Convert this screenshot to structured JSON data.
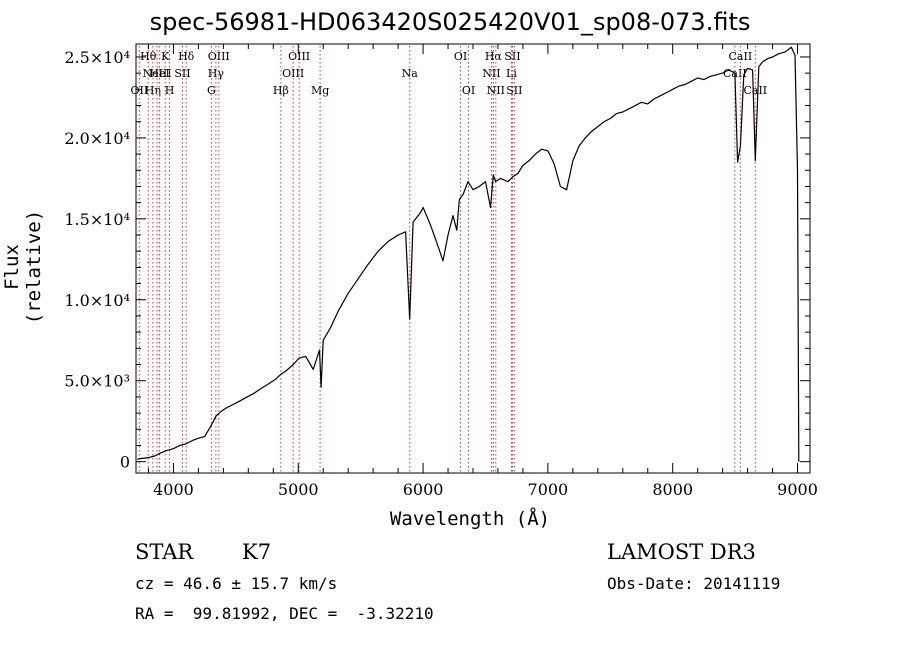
{
  "chart_data": {
    "type": "line",
    "title": "spec-56981-HD063420S025420V01_sp08-073.fits",
    "xlabel": "Wavelength (Å)",
    "ylabel": "Flux (relative)",
    "xlim": [
      3700,
      9100
    ],
    "ylim": [
      -700,
      25800
    ],
    "xticks": [
      {
        "value": 4000,
        "label": "4000"
      },
      {
        "value": 5000,
        "label": "5000"
      },
      {
        "value": 6000,
        "label": "6000"
      },
      {
        "value": 7000,
        "label": "7000"
      },
      {
        "value": 8000,
        "label": "8000"
      },
      {
        "value": 9000,
        "label": "9000"
      }
    ],
    "yticks": [
      {
        "value": 0,
        "label": "0"
      },
      {
        "value": 5000,
        "label": "5.0×10³"
      },
      {
        "value": 10000,
        "label": "1.0×10⁴"
      },
      {
        "value": 15000,
        "label": "1.5×10⁴"
      },
      {
        "value": 20000,
        "label": "2.0×10⁴"
      },
      {
        "value": 25000,
        "label": "2.5×10⁴"
      }
    ],
    "grid": false,
    "series": [
      {
        "color": "#000000",
        "x": [
          3710,
          3750,
          3800,
          3850,
          3900,
          3950,
          4000,
          4050,
          4100,
          4150,
          4200,
          4250,
          4300,
          4340,
          4380,
          4420,
          4470,
          4520,
          4580,
          4640,
          4700,
          4760,
          4820,
          4861,
          4900,
          4960,
          5007,
          5060,
          5120,
          5170,
          5183,
          5200,
          5260,
          5320,
          5400,
          5480,
          5560,
          5640,
          5720,
          5800,
          5860,
          5893,
          5920,
          5980,
          6000,
          6060,
          6120,
          6160,
          6200,
          6240,
          6270,
          6290,
          6320,
          6360,
          6400,
          6450,
          6500,
          6540,
          6563,
          6580,
          6620,
          6680,
          6720,
          6760,
          6800,
          6850,
          6900,
          6950,
          7000,
          7050,
          7100,
          7150,
          7200,
          7250,
          7300,
          7350,
          7400,
          7450,
          7500,
          7550,
          7600,
          7650,
          7700,
          7750,
          7800,
          7850,
          7900,
          7950,
          8000,
          8050,
          8100,
          8150,
          8200,
          8250,
          8300,
          8350,
          8400,
          8450,
          8498,
          8520,
          8542,
          8570,
          8600,
          8640,
          8662,
          8690,
          8720,
          8760,
          8800,
          8850,
          8900,
          8950,
          8980,
          9000,
          9010
        ],
        "y": [
          150,
          200,
          250,
          350,
          550,
          700,
          800,
          1000,
          1100,
          1300,
          1450,
          1550,
          2200,
          2800,
          3100,
          3300,
          3500,
          3700,
          3950,
          4200,
          4500,
          4800,
          5100,
          5400,
          5600,
          6000,
          6400,
          6500,
          5700,
          6900,
          4600,
          7500,
          8300,
          9300,
          10400,
          11300,
          12200,
          13000,
          13600,
          14000,
          14200,
          8800,
          14800,
          15400,
          15700,
          14600,
          13300,
          12400,
          14000,
          15200,
          14300,
          16200,
          16500,
          17300,
          16800,
          17000,
          17300,
          15700,
          17700,
          17300,
          17500,
          17300,
          17600,
          17800,
          18300,
          18600,
          19000,
          19300,
          19200,
          18400,
          17000,
          16800,
          18600,
          19500,
          20000,
          20400,
          20700,
          21000,
          21200,
          21500,
          21600,
          21800,
          22000,
          22200,
          22100,
          22400,
          22600,
          22800,
          23000,
          23200,
          23300,
          23500,
          23700,
          23600,
          23800,
          23900,
          24000,
          24200,
          24000,
          18500,
          19500,
          23900,
          24300,
          24200,
          18600,
          24400,
          24700,
          24900,
          25000,
          25200,
          25300,
          25600,
          25100,
          18000,
          0
        ]
      }
    ],
    "spectral_lines": [
      {
        "wavelength": 3727,
        "label": "OII",
        "row": 2
      },
      {
        "wavelength": 3798,
        "label": "Hθ",
        "row": 0
      },
      {
        "wavelength": 3835,
        "label": "Hη",
        "row": 2
      },
      {
        "wavelength": 3869,
        "label": "NeIII",
        "row": 1
      },
      {
        "wavelength": 3889,
        "label": "HeI",
        "row": 1
      },
      {
        "wavelength": 3934,
        "label": "K",
        "row": 0
      },
      {
        "wavelength": 3969,
        "label": "H",
        "row": 2
      },
      {
        "wavelength": 4072,
        "label": "SII",
        "row": 1
      },
      {
        "wavelength": 4102,
        "label": "Hδ",
        "row": 0
      },
      {
        "wavelength": 4304,
        "label": "G",
        "row": 2
      },
      {
        "wavelength": 4340,
        "label": "Hγ",
        "row": 1
      },
      {
        "wavelength": 4363,
        "label": "OIII",
        "row": 0
      },
      {
        "wavelength": 4861,
        "label": "Hβ",
        "row": 2
      },
      {
        "wavelength": 4959,
        "label": "OIII",
        "row": 1
      },
      {
        "wavelength": 5007,
        "label": "OIII",
        "row": 0
      },
      {
        "wavelength": 5175,
        "label": "Mg",
        "row": 2
      },
      {
        "wavelength": 5893,
        "label": "Na",
        "row": 1
      },
      {
        "wavelength": 6300,
        "label": "OI",
        "row": 0
      },
      {
        "wavelength": 6364,
        "label": "OI",
        "row": 2
      },
      {
        "wavelength": 6548,
        "label": "NII",
        "row": 1
      },
      {
        "wavelength": 6563,
        "label": "Hα",
        "row": 0
      },
      {
        "wavelength": 6583,
        "label": "NII",
        "row": 2
      },
      {
        "wavelength": 6708,
        "label": "Li",
        "row": 1
      },
      {
        "wavelength": 6716,
        "label": "SII",
        "row": 0
      },
      {
        "wavelength": 6731,
        "label": "SII",
        "row": 2
      },
      {
        "wavelength": 8498,
        "label": "CaII",
        "row": 1
      },
      {
        "wavelength": 8542,
        "label": "CaII",
        "row": 0
      },
      {
        "wavelength": 8662,
        "label": "CaII",
        "row": 2
      }
    ],
    "line_color": "#cc3333"
  },
  "info": {
    "class": "STAR",
    "subclass": "K7",
    "survey": "LAMOST DR3",
    "cz": "cz = 46.6 ± 15.7 km/s",
    "obs_date": "Obs-Date: 20141119",
    "coords": "RA =  99.81992, DEC =  -3.32210"
  }
}
